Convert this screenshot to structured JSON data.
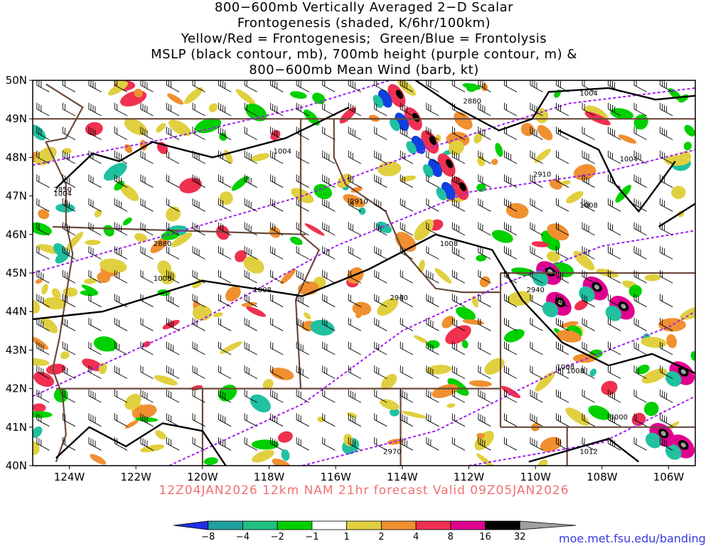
{
  "title": {
    "lines": [
      "800−600mb Vertically Averaged 2−D Scalar",
      "Frontogenesis (shaded, K/6hr/100km)",
      "Yellow/Red = Frontogenesis;  Green/Blue = Frontolysis",
      "MSLP (black contour, mb), 700mb height (purple contour, m) &",
      "800−600mb Mean Wind (barb, kt)"
    ]
  },
  "footer": {
    "valid_line": "12Z04JAN2026 12km NAM 21hr forecast Valid 09Z05JAN2026",
    "credit": "moe.met.fsu.edu/banding"
  },
  "map": {
    "lat_labels": [
      "50N",
      "49N",
      "48N",
      "47N",
      "46N",
      "45N",
      "44N",
      "43N",
      "42N",
      "41N",
      "40N"
    ],
    "lon_labels": [
      "124W",
      "122W",
      "120W",
      "118W",
      "116W",
      "114W",
      "112W",
      "110W",
      "108W",
      "106W"
    ],
    "lat_values": [
      50,
      49,
      48,
      47,
      46,
      45,
      44,
      43,
      42,
      41,
      40
    ],
    "lon_values": [
      -124,
      -122,
      -120,
      -118,
      -116,
      -114,
      -112,
      -110,
      -108,
      -106
    ],
    "lon_range": [
      -125.1,
      -105.2
    ],
    "lat_range": [
      40,
      50
    ],
    "mslp_labels": [
      "1004",
      "1004",
      "1004",
      "1004",
      "1008",
      "1008",
      "1008",
      "1008",
      "1008",
      "1012",
      "1008"
    ],
    "height_labels": [
      "2880",
      "2880",
      "2910",
      "2910",
      "2940",
      "2940",
      "2970",
      "3000",
      "2850"
    ],
    "colors": {
      "mslp": "#000000",
      "height": "#a020f0",
      "border": "#6b4a3a",
      "frontolysis_strong": "#1040e0",
      "frontolysis": "#20c0a0",
      "frontolysis_weak": "#00d000",
      "frontogenesis_weak": "#e0d040",
      "frontogenesis": "#f09030",
      "frontogenesis_strong": "#f03050",
      "frontogenesis_extreme": "#e00090",
      "black": "#000000",
      "gray": "#a0a0a0"
    }
  },
  "colorbar": {
    "labels": [
      "−8",
      "−4",
      "−2",
      "−1",
      "1",
      "2",
      "4",
      "8",
      "16",
      "32"
    ],
    "colors": [
      "#2030e0",
      "#20a0a0",
      "#20c080",
      "#00d000",
      "#ffffff",
      "#e0d040",
      "#f09030",
      "#f03050",
      "#e00090",
      "#000000",
      "#a0a0a0"
    ]
  }
}
